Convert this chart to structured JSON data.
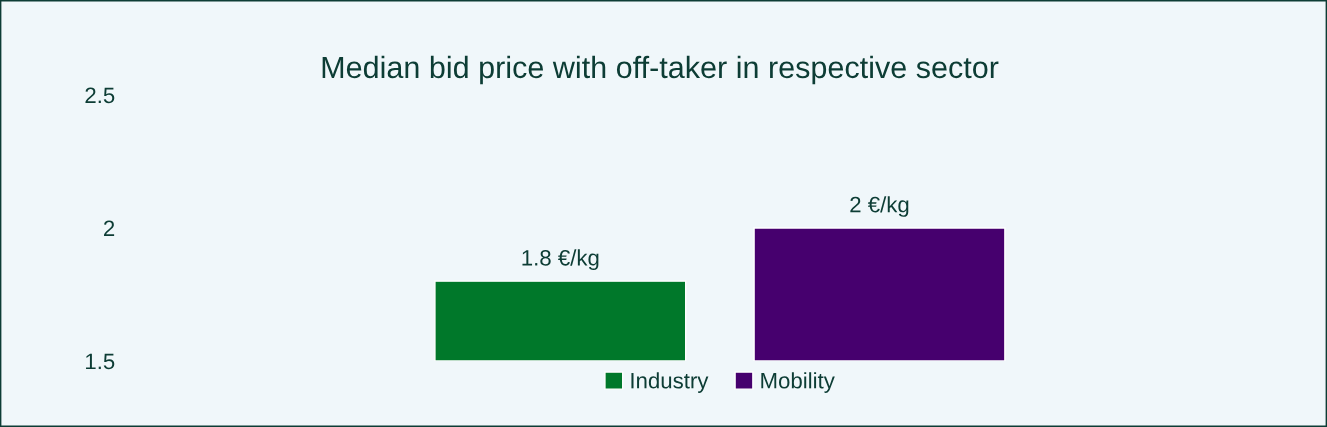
{
  "chart_data": {
    "type": "bar",
    "title": "Median bid price with off-taker in respective sector",
    "categories": [
      null
    ],
    "series": [
      {
        "name": "Industry",
        "color": "#00782a",
        "values": [
          1.8
        ],
        "value_labels": [
          "1.8 €/kg"
        ]
      },
      {
        "name": "Mobility",
        "color": "#46006e",
        "values": [
          2
        ],
        "value_labels": [
          "2 €/kg"
        ]
      }
    ],
    "ylim": [
      1.5,
      2.5
    ],
    "yticks": [
      1.5,
      2,
      2.5
    ],
    "tick_labels": "y",
    "grid": false,
    "legend": "bottom"
  }
}
